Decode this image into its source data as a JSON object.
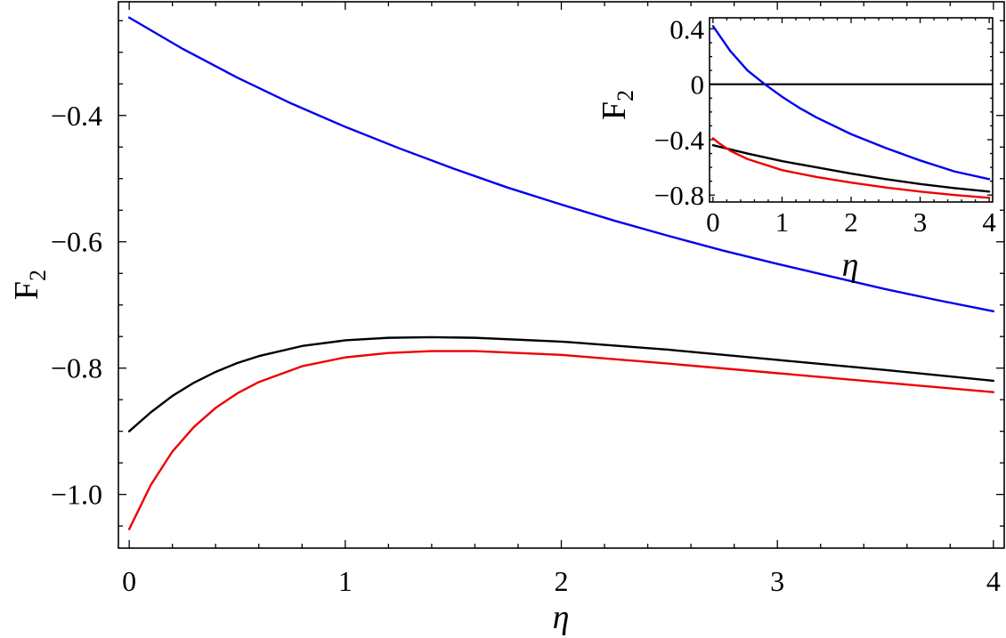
{
  "chart_data": [
    {
      "type": "line",
      "title": "",
      "xlabel": "η",
      "ylabel_main": "F",
      "ylabel_sub": "2",
      "xlim": [
        -0.05,
        4.05
      ],
      "ylim": [
        -1.085,
        -0.22
      ],
      "x_ticks": [
        0,
        1,
        2,
        3,
        4
      ],
      "x_tick_labels": [
        "0",
        "1",
        "2",
        "3",
        "4"
      ],
      "y_ticks": [
        -0.4,
        -0.6,
        -0.8,
        -1.0
      ],
      "y_tick_labels": [
        "−0.4",
        "−0.6",
        "−0.8",
        "−1.0"
      ],
      "series": [
        {
          "color": "#0000ee",
          "x": [
            0,
            0.25,
            0.5,
            0.75,
            1.0,
            1.25,
            1.5,
            1.75,
            2.0,
            2.25,
            2.5,
            2.75,
            3.0,
            3.25,
            3.5,
            3.75,
            4.0
          ],
          "y": [
            -0.245,
            -0.295,
            -0.34,
            -0.381,
            -0.418,
            -0.452,
            -0.484,
            -0.514,
            -0.541,
            -0.567,
            -0.591,
            -0.614,
            -0.635,
            -0.655,
            -0.675,
            -0.693,
            -0.71
          ]
        },
        {
          "color": "#000000",
          "x": [
            0,
            0.1,
            0.2,
            0.3,
            0.4,
            0.5,
            0.6,
            0.8,
            1.0,
            1.2,
            1.4,
            1.6,
            2.0,
            2.5,
            3.0,
            3.5,
            4.0
          ],
          "y": [
            -0.9,
            -0.87,
            -0.844,
            -0.823,
            -0.806,
            -0.792,
            -0.781,
            -0.765,
            -0.756,
            -0.752,
            -0.751,
            -0.752,
            -0.758,
            -0.771,
            -0.787,
            -0.803,
            -0.82
          ]
        },
        {
          "color": "#ee0000",
          "x": [
            0,
            0.1,
            0.2,
            0.3,
            0.4,
            0.5,
            0.6,
            0.8,
            1.0,
            1.2,
            1.4,
            1.6,
            2.0,
            2.5,
            3.0,
            3.5,
            4.0
          ],
          "y": [
            -1.055,
            -0.985,
            -0.932,
            -0.893,
            -0.863,
            -0.84,
            -0.822,
            -0.797,
            -0.783,
            -0.776,
            -0.773,
            -0.773,
            -0.779,
            -0.793,
            -0.808,
            -0.823,
            -0.838
          ]
        }
      ]
    },
    {
      "type": "line",
      "title": "",
      "xlabel": "η",
      "ylabel_main": "F",
      "ylabel_sub": "2",
      "xlim": [
        -0.05,
        4.05
      ],
      "ylim": [
        -0.85,
        0.48
      ],
      "x_ticks": [
        0,
        1,
        2,
        3,
        4
      ],
      "x_tick_labels": [
        "0",
        "1",
        "2",
        "3",
        "4"
      ],
      "y_ticks": [
        0.4,
        0,
        -0.4,
        -0.8
      ],
      "y_tick_labels": [
        "0.4",
        "0",
        "−0.4",
        "−0.8"
      ],
      "zero_line": true,
      "series": [
        {
          "color": "#0000ee",
          "x": [
            0,
            0.25,
            0.5,
            0.75,
            1.0,
            1.25,
            1.5,
            2.0,
            2.5,
            3.0,
            3.5,
            4.0
          ],
          "y": [
            0.42,
            0.24,
            0.1,
            0.0,
            -0.09,
            -0.17,
            -0.24,
            -0.36,
            -0.46,
            -0.55,
            -0.63,
            -0.685
          ]
        },
        {
          "color": "#000000",
          "x": [
            0,
            0.5,
            1.0,
            1.5,
            2.0,
            2.5,
            3.0,
            3.5,
            4.0
          ],
          "y": [
            -0.44,
            -0.5,
            -0.555,
            -0.6,
            -0.645,
            -0.685,
            -0.72,
            -0.75,
            -0.775
          ]
        },
        {
          "color": "#ee0000",
          "x": [
            0,
            0.1,
            0.25,
            0.5,
            1.0,
            1.5,
            2.0,
            2.5,
            3.0,
            3.5,
            4.0
          ],
          "y": [
            -0.39,
            -0.43,
            -0.48,
            -0.54,
            -0.62,
            -0.67,
            -0.71,
            -0.745,
            -0.775,
            -0.8,
            -0.82
          ]
        }
      ]
    }
  ]
}
